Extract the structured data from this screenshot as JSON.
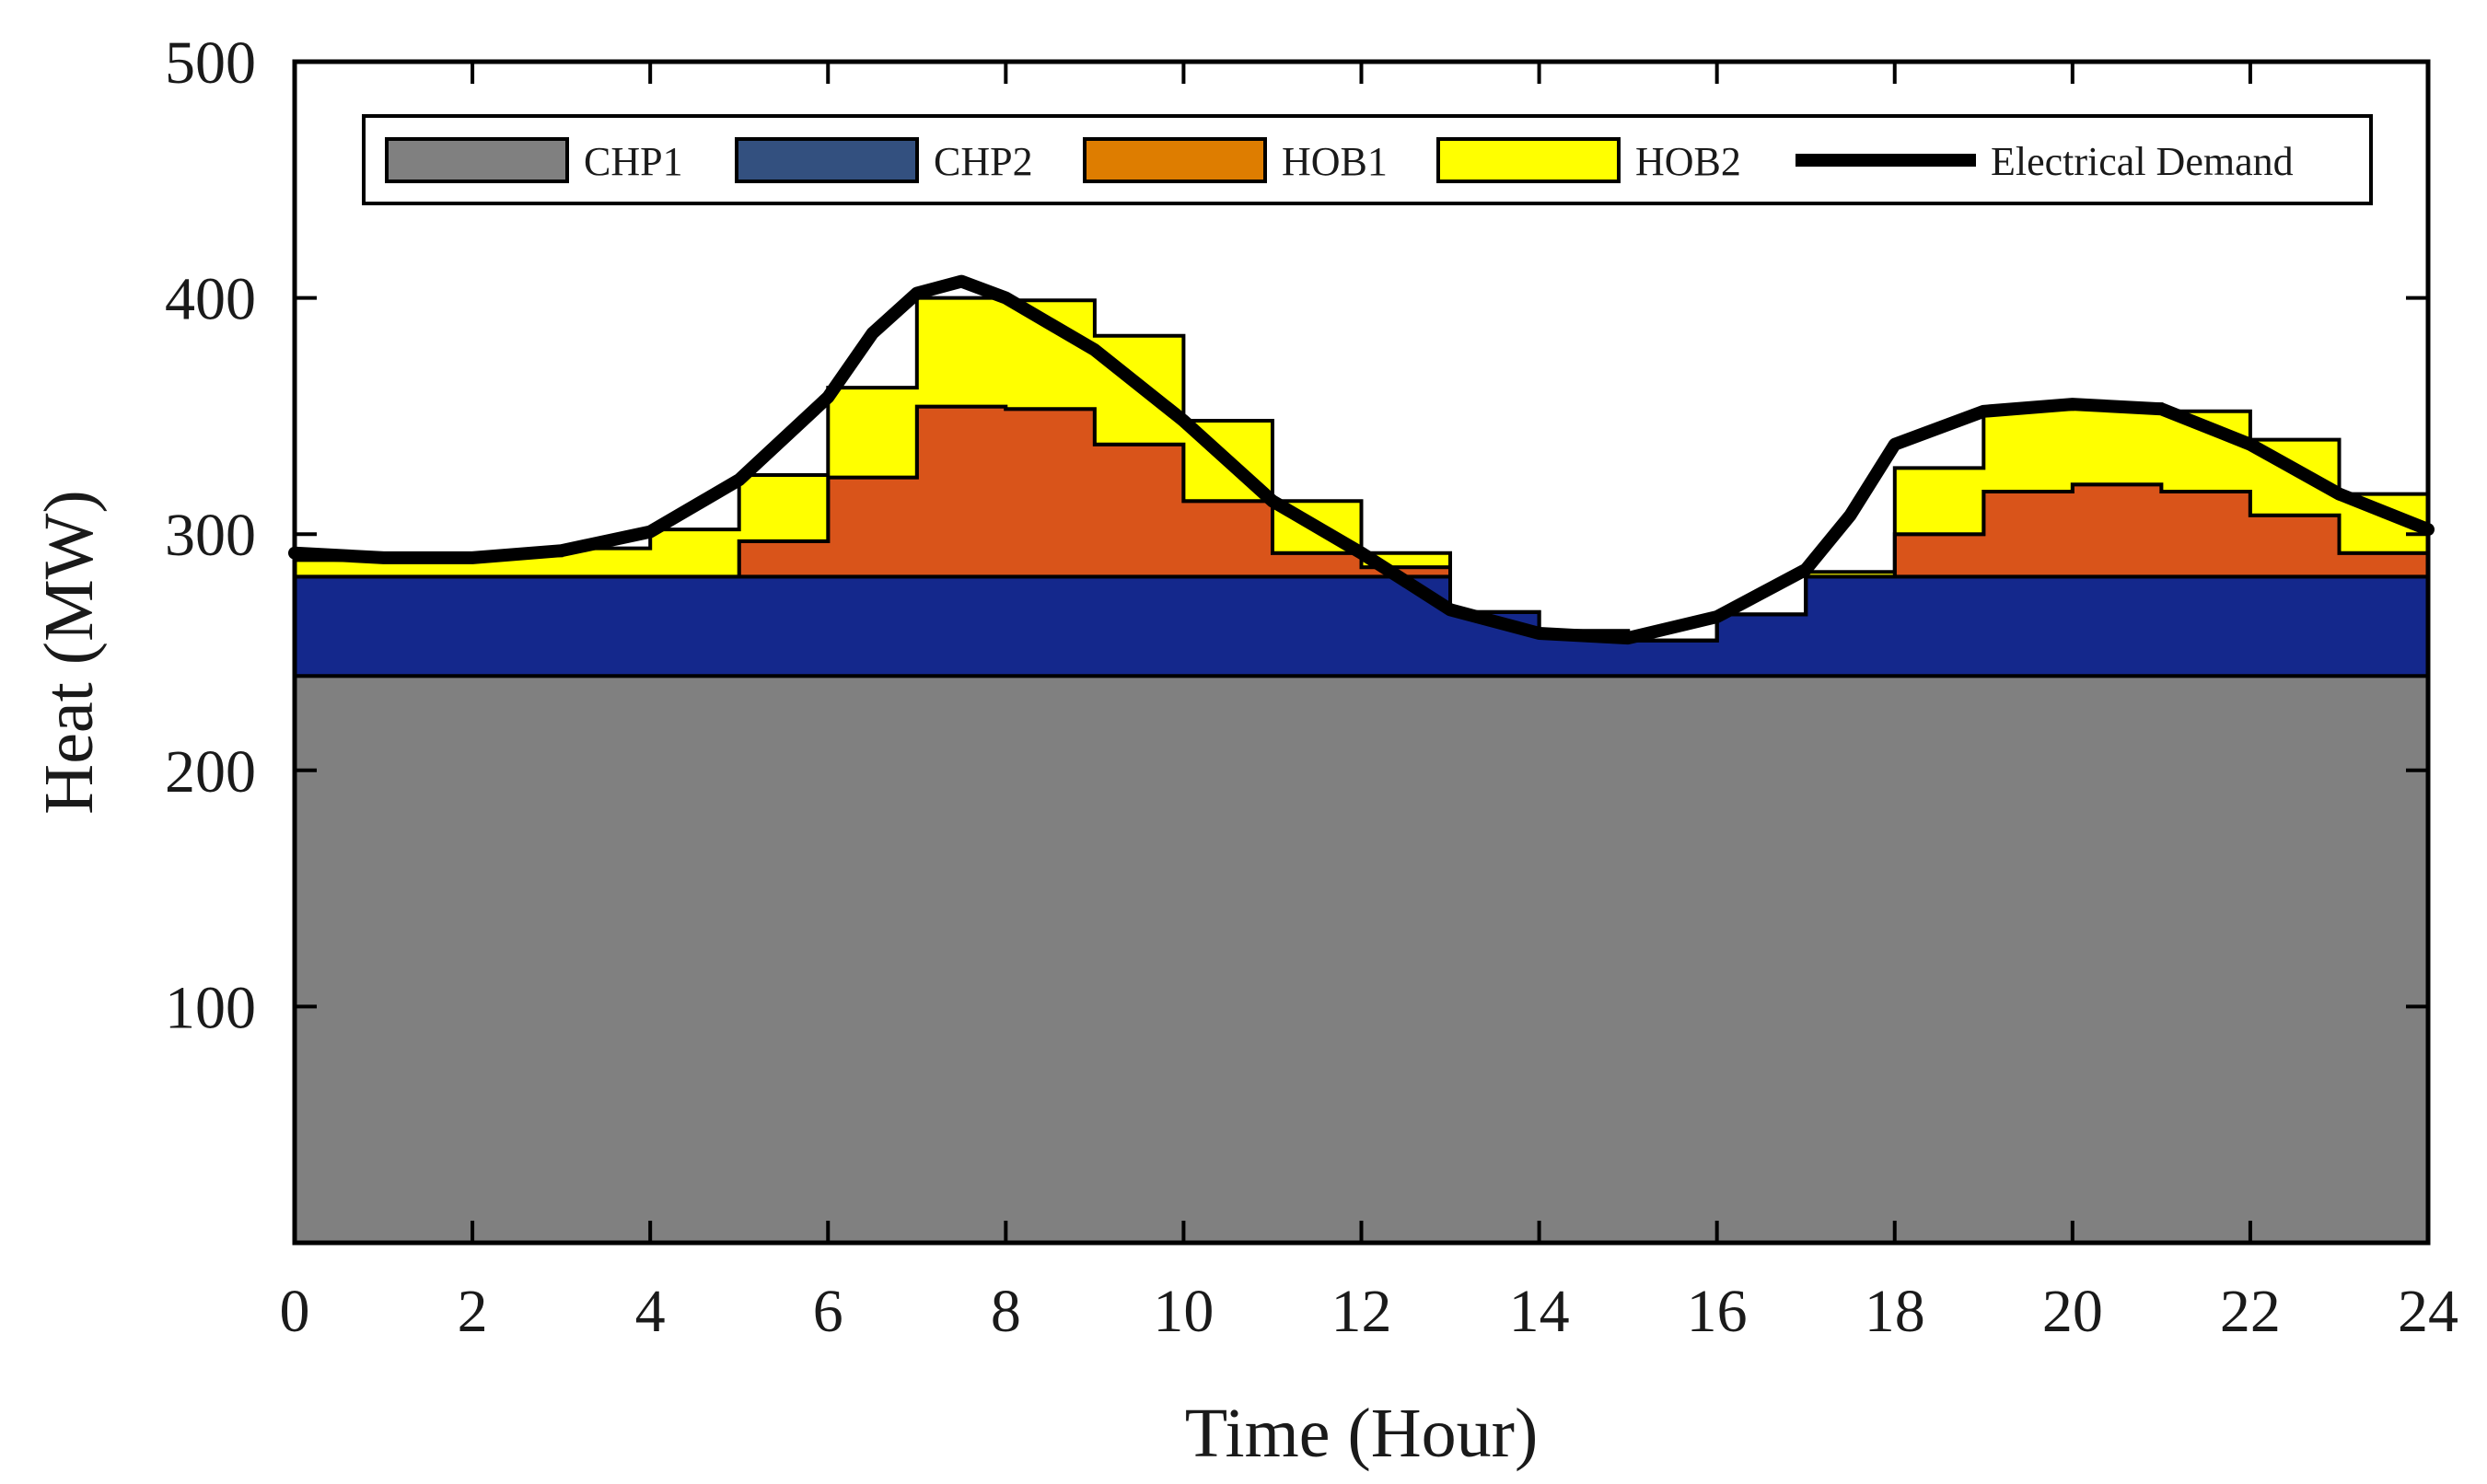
{
  "chart_data": {
    "type": "area",
    "stacked": true,
    "xlabel": "Time (Hour)",
    "ylabel": "Heat (MW)",
    "xlim": [
      0,
      24
    ],
    "ylim": [
      0,
      500
    ],
    "xticks": [
      "0",
      "2",
      "4",
      "6",
      "8",
      "10",
      "12",
      "14",
      "16",
      "18",
      "20",
      "22",
      "24"
    ],
    "yticks": [
      "100",
      "200",
      "300",
      "400",
      "500"
    ],
    "ytick_values": [
      100,
      200,
      300,
      400,
      500
    ],
    "grid": false,
    "legend_position": "top",
    "hours": [
      0,
      1,
      2,
      3,
      4,
      5,
      6,
      7,
      8,
      9,
      10,
      11,
      12,
      13,
      14,
      15,
      16,
      17,
      18,
      19,
      20,
      21,
      22,
      23
    ],
    "series": [
      {
        "name": "CHP1",
        "color": "#808080",
        "values": [
          240,
          240,
          240,
          240,
          240,
          240,
          240,
          240,
          240,
          240,
          240,
          240,
          240,
          240,
          240,
          240,
          240,
          240,
          240,
          240,
          240,
          240,
          240,
          240
        ]
      },
      {
        "name": "CHP2",
        "color": "#14288C",
        "legend_color": "#33507F",
        "values": [
          42,
          42,
          42,
          42,
          42,
          42,
          42,
          42,
          42,
          42,
          42,
          42,
          42,
          27,
          19,
          15,
          26,
          42,
          42,
          42,
          42,
          42,
          42,
          42
        ]
      },
      {
        "name": "HOB1",
        "color": "#D9541A",
        "legend_color": "#DE7D00",
        "values": [
          0,
          0,
          0,
          0,
          0,
          15,
          42,
          72,
          71,
          56,
          32,
          10,
          4,
          0,
          0,
          0,
          0,
          0,
          18,
          36,
          39,
          36,
          26,
          10
        ]
      },
      {
        "name": "HOB2",
        "color": "#FFFF00",
        "values": [
          7,
          7,
          9,
          12,
          20,
          28,
          38,
          46,
          46,
          46,
          34,
          22,
          6,
          0,
          0,
          0,
          0,
          2,
          28,
          35,
          34,
          34,
          32,
          25
        ]
      }
    ],
    "line_series": {
      "name": "Electrical Demand",
      "color": "#000000",
      "x": [
        0,
        1,
        2,
        3,
        4,
        5,
        6,
        6.5,
        7,
        7.5,
        8,
        9,
        10,
        11,
        12,
        13,
        14,
        15,
        16,
        17,
        17.5,
        18,
        19,
        20,
        21,
        22,
        23,
        24
      ],
      "y": [
        292,
        290,
        290,
        293,
        301,
        323,
        358,
        385,
        402,
        407,
        400,
        378,
        348,
        314,
        292,
        268,
        258,
        256,
        265,
        285,
        308,
        338,
        352,
        355,
        353,
        338,
        317,
        302
      ]
    }
  }
}
